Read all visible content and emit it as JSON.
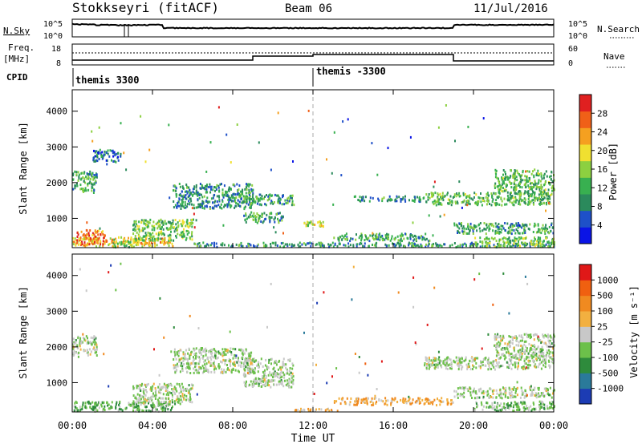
{
  "header": {
    "title": "Stokkseyri (fitACF)",
    "beam": "Beam 06",
    "date": "11/Jul/2016"
  },
  "top_panels": {
    "nsky_label": "N.Sky",
    "nsearch_label": "N.Search",
    "freq_label_1": "Freq.",
    "freq_label_2": "[MHz]",
    "nave_label": "Nave",
    "cpid_label": "CPID",
    "noise_ticks_left": [
      "10^5",
      "10^0"
    ],
    "noise_ticks_right": [
      "10^5",
      "10^0"
    ],
    "freq_ticks": [
      "18",
      "8"
    ],
    "nave_ticks": [
      "60",
      "0"
    ],
    "cpid_segments": [
      {
        "label": "themis 3300",
        "start_hour": 0
      },
      {
        "label": "themis -3300",
        "start_hour": 12
      }
    ]
  },
  "power_colorbar": {
    "label": "Power [dB]",
    "ticks": [
      "28",
      "24",
      "20",
      "16",
      "12",
      "8",
      "4"
    ],
    "colors": [
      "#0a14e6",
      "#1e50c8",
      "#2b8a5c",
      "#38b050",
      "#8cd040",
      "#f0e030",
      "#f5a020",
      "#f06018",
      "#e02020"
    ]
  },
  "velocity_colorbar": {
    "label": "Velocity [m s⁻¹]",
    "ticks": [
      "1000",
      "500",
      "100",
      "25",
      "-25",
      "-100",
      "-500",
      "-1000"
    ],
    "colors": [
      "#1c3cb4",
      "#2a7a9a",
      "#2e8b3c",
      "#6cc04a",
      "#c8c8c8",
      "#f2b040",
      "#f08a20",
      "#f06010",
      "#e01818"
    ]
  },
  "chart_data": {
    "type": "heatmap",
    "xlabel": "Time UT",
    "x_ticks": [
      "00:00",
      "04:00",
      "08:00",
      "12:00",
      "16:00",
      "20:00",
      "00:00"
    ],
    "xlim_hours": [
      0,
      24
    ],
    "panels": [
      {
        "name": "power",
        "ylabel": "Slant Range [km]",
        "ylim_km": [
          180,
          4600
        ],
        "y_ticks": [
          1000,
          2000,
          3000,
          4000
        ],
        "features": [
          {
            "t0": 0.0,
            "t1": 5.0,
            "r0": 180,
            "r1": 500,
            "level": 0.65
          },
          {
            "t0": 0.2,
            "t1": 1.6,
            "r0": 300,
            "r1": 700,
            "level": 0.8
          },
          {
            "t0": 2.0,
            "t1": 3.5,
            "r0": 200,
            "r1": 450,
            "level": 0.5
          },
          {
            "t0": 3.0,
            "t1": 6.0,
            "r0": 400,
            "r1": 1000,
            "level": 0.45
          },
          {
            "t0": 0.0,
            "t1": 1.2,
            "r0": 1750,
            "r1": 2350,
            "level": 0.35
          },
          {
            "t0": 1.0,
            "t1": 2.4,
            "r0": 2600,
            "r1": 2950,
            "level": 0.25
          },
          {
            "t0": 5.0,
            "t1": 9.0,
            "r0": 1300,
            "r1": 2000,
            "level": 0.3
          },
          {
            "t0": 8.5,
            "t1": 11.0,
            "r0": 1400,
            "r1": 1700,
            "level": 0.35
          },
          {
            "t0": 8.5,
            "t1": 10.5,
            "r0": 900,
            "r1": 1200,
            "level": 0.35
          },
          {
            "t0": 11.5,
            "t1": 12.5,
            "r0": 800,
            "r1": 950,
            "level": 0.55
          },
          {
            "t0": 6.0,
            "t1": 24.0,
            "r0": 180,
            "r1": 350,
            "level": 0.3
          },
          {
            "t0": 13.0,
            "t1": 18.0,
            "r0": 400,
            "r1": 600,
            "level": 0.35
          },
          {
            "t0": 17.5,
            "t1": 24.0,
            "r0": 1400,
            "r1": 1750,
            "level": 0.4
          },
          {
            "t0": 21.0,
            "t1": 24.0,
            "r0": 1700,
            "r1": 2400,
            "level": 0.4
          },
          {
            "t0": 19.0,
            "t1": 24.0,
            "r0": 600,
            "r1": 900,
            "level": 0.35
          },
          {
            "t0": 20.0,
            "t1": 24.0,
            "r0": 180,
            "r1": 500,
            "level": 0.45
          },
          {
            "t0": 14.0,
            "t1": 17.5,
            "r0": 1500,
            "r1": 1650,
            "level": 0.3
          }
        ]
      },
      {
        "name": "velocity",
        "ylabel": "Slant Range [km]",
        "ylim_km": [
          180,
          4600
        ],
        "y_ticks": [
          1000,
          2000,
          3000,
          4000
        ],
        "features": [
          {
            "t0": 0.0,
            "t1": 5.0,
            "r0": 180,
            "r1": 500,
            "level": 0.35
          },
          {
            "t0": 3.0,
            "t1": 6.0,
            "r0": 400,
            "r1": 1000,
            "level": 0.45
          },
          {
            "t0": 0.0,
            "t1": 1.2,
            "r0": 1750,
            "r1": 2350,
            "level": 0.45
          },
          {
            "t0": 5.0,
            "t1": 9.0,
            "r0": 1300,
            "r1": 2000,
            "level": 0.45
          },
          {
            "t0": 8.5,
            "t1": 11.0,
            "r0": 900,
            "r1": 1700,
            "level": 0.45
          },
          {
            "t0": 13.0,
            "t1": 19.0,
            "r0": 400,
            "r1": 600,
            "level": 0.65
          },
          {
            "t0": 11.0,
            "t1": 13.5,
            "r0": 180,
            "r1": 300,
            "level": 0.6
          },
          {
            "t0": 17.5,
            "t1": 24.0,
            "r0": 1400,
            "r1": 1750,
            "level": 0.45
          },
          {
            "t0": 21.0,
            "t1": 24.0,
            "r0": 1700,
            "r1": 2400,
            "level": 0.45
          },
          {
            "t0": 19.0,
            "t1": 24.0,
            "r0": 600,
            "r1": 900,
            "level": 0.45
          },
          {
            "t0": 20.0,
            "t1": 24.0,
            "r0": 180,
            "r1": 500,
            "level": 0.4
          }
        ]
      }
    ]
  }
}
